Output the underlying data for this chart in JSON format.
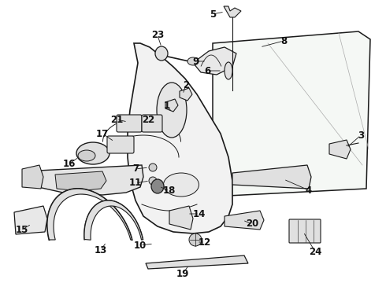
{
  "bg_color": "#ffffff",
  "line_color": "#1a1a1a",
  "label_color": "#111111",
  "fig_width": 4.9,
  "fig_height": 3.6,
  "dpi": 100
}
